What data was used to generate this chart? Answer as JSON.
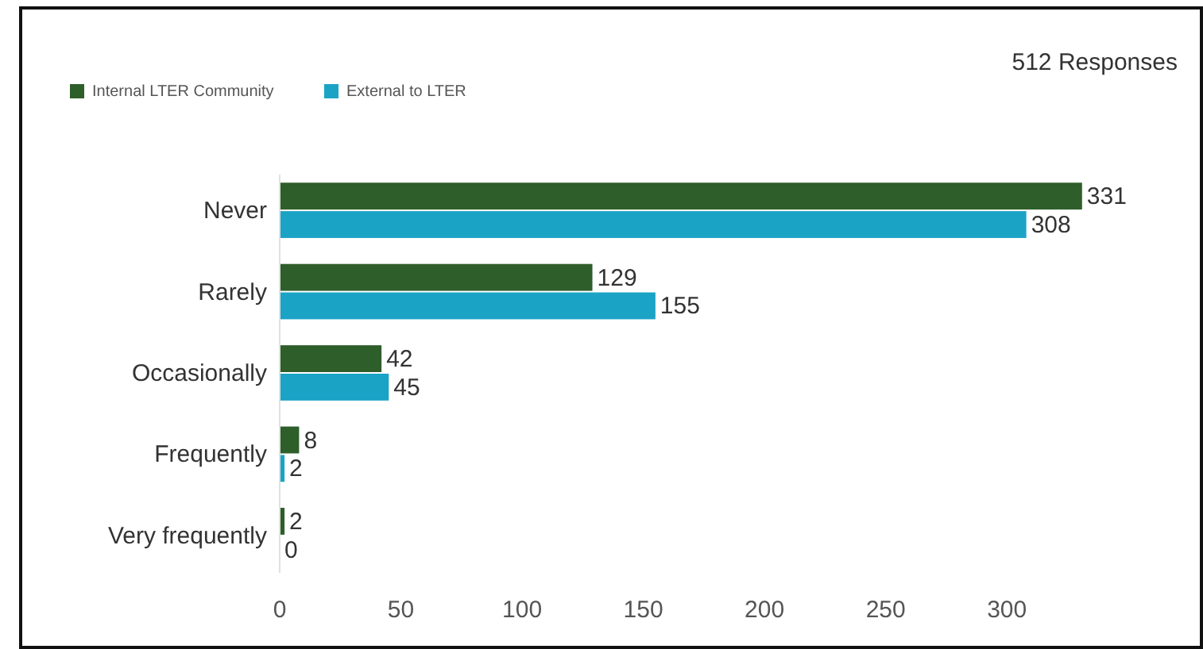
{
  "chart_data": {
    "type": "bar",
    "orientation": "horizontal",
    "subtitle": "512 Responses",
    "categories": [
      "Never",
      "Rarely",
      "Occasionally",
      "Frequently",
      "Very frequently"
    ],
    "series": [
      {
        "name": "Internal LTER Community",
        "color": "#2e5e2a",
        "values": [
          331,
          129,
          42,
          8,
          2
        ]
      },
      {
        "name": "External to LTER",
        "color": "#1ba3c6",
        "values": [
          308,
          155,
          45,
          2,
          0
        ]
      }
    ],
    "xlim": [
      0,
      335
    ],
    "xticks": [
      0,
      50,
      100,
      150,
      200,
      250,
      300
    ],
    "data_labels": true,
    "legend": "top left",
    "grid": false
  }
}
